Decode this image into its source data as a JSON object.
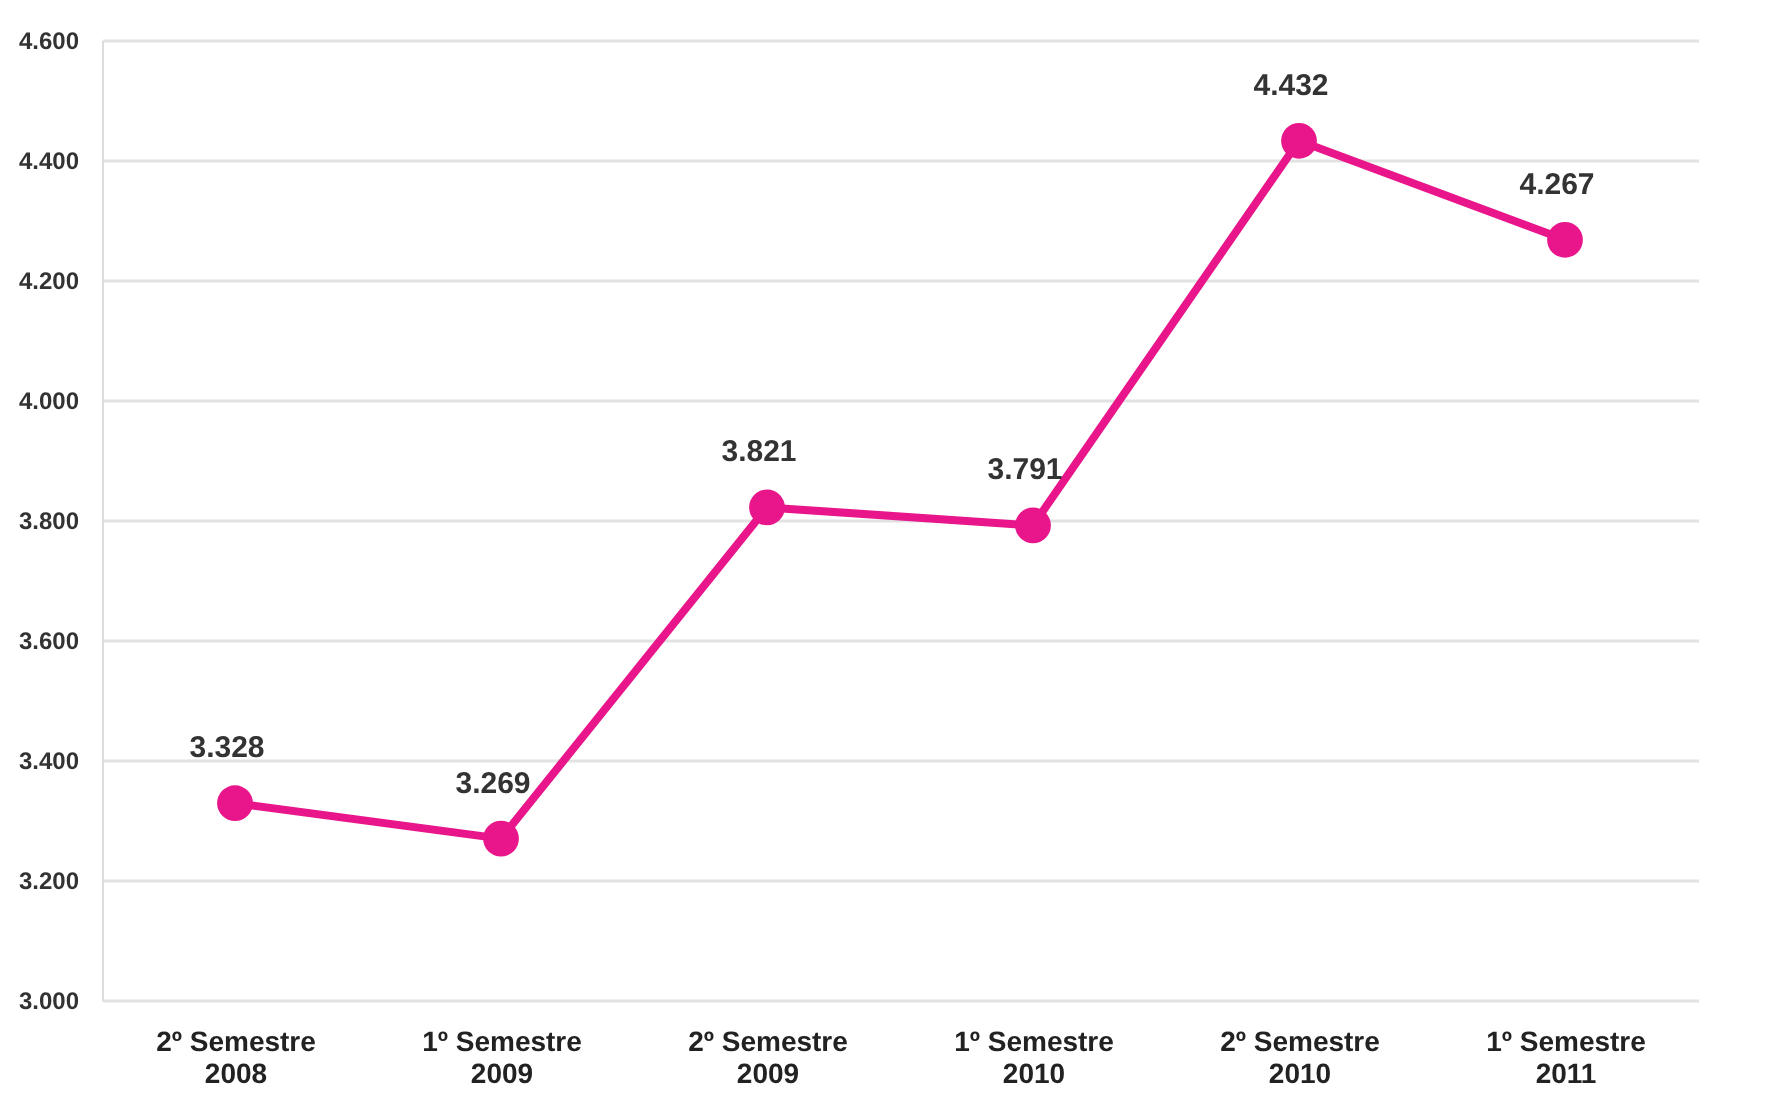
{
  "chart_data": {
    "type": "line",
    "categories": [
      "2º Semestre 2008",
      "1º Semestre 2009",
      "2º Semestre 2009",
      "1º Semestre 2010",
      "2º Semestre 2010",
      "1º Semestre 2011"
    ],
    "series": [
      {
        "color": "#e8168a",
        "values": [
          3328,
          3269,
          3821,
          3791,
          4432,
          4267
        ],
        "value_labels": [
          "3.328",
          "3.269",
          "3.821",
          "3.791",
          "4.432",
          "4.267"
        ]
      }
    ],
    "ylim": [
      3000,
      4600
    ],
    "yticks": [
      {
        "value": 3000,
        "label": "3.000"
      },
      {
        "value": 3200,
        "label": "3.200"
      },
      {
        "value": 3400,
        "label": "3.400"
      },
      {
        "value": 3600,
        "label": "3.600"
      },
      {
        "value": 3800,
        "label": "3.800"
      },
      {
        "value": 4000,
        "label": "4.000"
      },
      {
        "value": 4200,
        "label": "4.200"
      },
      {
        "value": 4400,
        "label": "4.400"
      },
      {
        "value": 4600,
        "label": "4.600"
      }
    ],
    "grid": "y",
    "marker": "circle",
    "line_style": "solid"
  }
}
